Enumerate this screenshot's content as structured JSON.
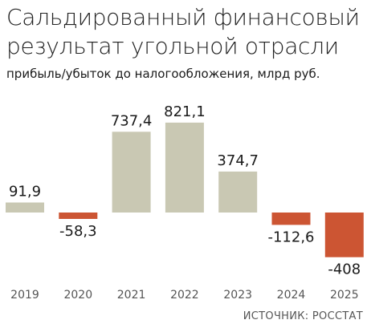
{
  "chart_data": {
    "type": "bar",
    "title": "Сальдированный финансовый результат угольной отрасли",
    "subtitle": "прибыль/убыток до налогообложения, млрд руб.",
    "source": "ИСТОЧНИК: РОССТАТ",
    "categories": [
      "2019",
      "2020",
      "2021",
      "2022",
      "2023",
      "2024",
      "2025"
    ],
    "values": [
      91.9,
      -58.3,
      737.4,
      821.1,
      374.7,
      -112.6,
      -408
    ],
    "value_labels": [
      "91,9",
      "-58,3",
      "737,4",
      "821,1",
      "374,7",
      "-112,6",
      "-408"
    ],
    "colors": {
      "positive": "#c9c8b3",
      "negative": "#cc5533"
    },
    "grid": false,
    "legend": "none"
  }
}
